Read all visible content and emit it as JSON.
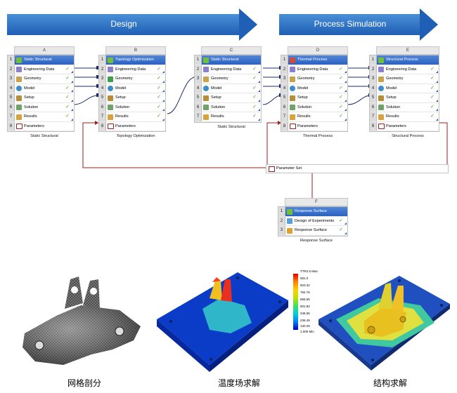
{
  "header": {
    "design_label": "Design",
    "process_label": "Process Simulation"
  },
  "systems": [
    {
      "letter": "A",
      "title": "Static Structural",
      "caption": "Static Structural",
      "rows": [
        "Engineering Data",
        "Geometry",
        "Model",
        "Setup",
        "Solution",
        "Results",
        "Parameters"
      ]
    },
    {
      "letter": "B",
      "title": "Topology Optimization",
      "caption": "Topology Optimization",
      "rows": [
        "Engineering Data",
        "Geometry",
        "Model",
        "Setup",
        "Solution",
        "Results",
        "Parameters"
      ]
    },
    {
      "letter": "C",
      "title": "Static Structural",
      "caption": "Static Structural",
      "rows": [
        "Engineering Data",
        "Geometry",
        "Model",
        "Setup",
        "Solution",
        "Results",
        "Parameters"
      ]
    },
    {
      "letter": "D",
      "title": "Thermal Process",
      "caption": "Thermal Process",
      "rows": [
        "Engineering Data",
        "Geometry",
        "Model",
        "Setup",
        "Solution",
        "Results",
        "Parameters"
      ]
    },
    {
      "letter": "E",
      "title": "Structural Process",
      "caption": "Structural Process",
      "rows": [
        "Engineering Data",
        "Geometry",
        "Model",
        "Setup",
        "Solution",
        "Results",
        "Parameters"
      ]
    },
    {
      "letter": "F",
      "title": "Response Surface",
      "caption": "Response Surface",
      "rows": [
        "Design of Experiments",
        "Response Surface"
      ]
    }
  ],
  "row_numbers": [
    "1",
    "2",
    "3",
    "4",
    "5",
    "6",
    "7",
    "8"
  ],
  "parameter_set_label": "Parameter Set",
  "legend": {
    "max_label": "TTR4.5 Max",
    "values": [
      "581.0",
      "503.32",
      "784.76",
      "666.55",
      "501.82",
      "348.65",
      "236.49",
      "130.29"
    ],
    "min_label": "1.000 Min"
  },
  "captions": {
    "mesh": "网格剖分",
    "thermal": "温度场求解",
    "structural": "结构求解"
  },
  "colors": {
    "arrow": "#1f5fb5",
    "title_bar": "#2c62c0",
    "check": "#3a9a1a",
    "link": "#9b1c1c"
  }
}
